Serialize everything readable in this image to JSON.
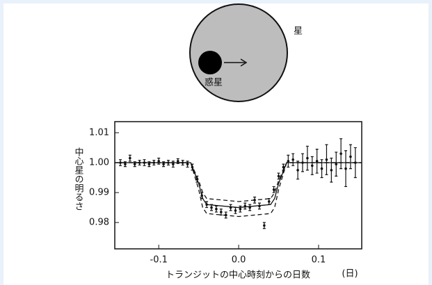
{
  "diagram": {
    "star_label": "星",
    "planet_label": "惑星"
  },
  "chart_data": {
    "type": "scatter",
    "y_label": "中心星の明るさ",
    "x_label": "トランジットの中心時刻からの日数",
    "x_unit": "(日)",
    "xlim": [
      -0.155,
      0.154
    ],
    "ylim": [
      0.9712,
      1.0137
    ],
    "xticks": [
      -0.1,
      {
        "value": 0,
        "label": "0.0"
      },
      0.1
    ],
    "yticks": [
      0.98,
      0.99,
      {
        "value": 1,
        "label": "1.00"
      },
      1.01
    ],
    "series": [
      {
        "color": "#111111",
        "x": [
          -0.148,
          -0.142,
          -0.136,
          -0.13,
          -0.124,
          -0.118,
          -0.112,
          -0.106,
          -0.1,
          -0.094,
          -0.088,
          -0.082,
          -0.076,
          -0.07,
          -0.064,
          -0.058,
          -0.052,
          -0.046,
          -0.04,
          -0.034,
          -0.028,
          -0.022,
          -0.016,
          -0.01,
          -0.004,
          0.002,
          0.008,
          0.014,
          0.02,
          0.026,
          0.032,
          0.038,
          0.044,
          0.05,
          0.056,
          0.062,
          0.068,
          0.074,
          0.08,
          0.086,
          0.092,
          0.098,
          0.104,
          0.11,
          0.116,
          0.122,
          0.128,
          0.134,
          0.14,
          0.146
        ],
        "values": [
          1.0,
          0.9995,
          1.0015,
          0.9995,
          1.0,
          1.0,
          0.9995,
          1.0,
          1.0005,
          0.9995,
          1.0,
          0.9995,
          1.0005,
          1.0,
          0.9995,
          0.9985,
          0.9945,
          0.989,
          0.986,
          0.985,
          0.9845,
          0.9835,
          0.9825,
          0.985,
          0.984,
          0.9845,
          0.9855,
          0.985,
          0.9875,
          0.9855,
          0.979,
          0.987,
          0.991,
          0.9955,
          0.9985,
          1.0005,
          1.001,
          0.9975,
          1.0,
          1.0015,
          0.999,
          1.0005,
          0.998,
          1.001,
          0.9975,
          0.9995,
          1.003,
          0.998,
          1.002,
          1.0
        ],
        "errors": [
          0.001,
          0.0008,
          0.001,
          0.0008,
          0.0008,
          0.001,
          0.0008,
          0.0008,
          0.001,
          0.0008,
          0.0008,
          0.001,
          0.0008,
          0.0008,
          0.001,
          0.001,
          0.001,
          0.001,
          0.001,
          0.001,
          0.001,
          0.001,
          0.001,
          0.001,
          0.001,
          0.001,
          0.001,
          0.001,
          0.001,
          0.001,
          0.001,
          0.001,
          0.001,
          0.001,
          0.001,
          0.002,
          0.002,
          0.003,
          0.003,
          0.004,
          0.003,
          0.004,
          0.003,
          0.005,
          0.004,
          0.004,
          0.005,
          0.006,
          0.004,
          0.005
        ]
      }
    ],
    "curves": [
      {
        "dashed": false,
        "x": [
          -0.155,
          -0.06,
          -0.05,
          -0.045,
          -0.04,
          0,
          0.04,
          0.045,
          0.05,
          0.06,
          0.154
        ],
        "values": [
          1,
          1,
          0.993,
          0.988,
          0.986,
          0.985,
          0.986,
          0.988,
          0.993,
          1,
          1
        ]
      },
      {
        "dashed": true,
        "x": [
          -0.155,
          -0.06,
          -0.05,
          -0.045,
          -0.04,
          0,
          0.04,
          0.045,
          0.05,
          0.06,
          0.154
        ],
        "values": [
          1,
          1,
          0.994,
          0.99,
          0.988,
          0.987,
          0.988,
          0.99,
          0.994,
          1,
          1
        ]
      },
      {
        "dashed": true,
        "x": [
          -0.155,
          -0.06,
          -0.05,
          -0.045,
          -0.04,
          0,
          0.04,
          0.045,
          0.05,
          0.06,
          0.154
        ],
        "values": [
          1,
          1,
          0.991,
          0.985,
          0.983,
          0.982,
          0.983,
          0.985,
          0.991,
          1,
          1
        ]
      }
    ]
  }
}
